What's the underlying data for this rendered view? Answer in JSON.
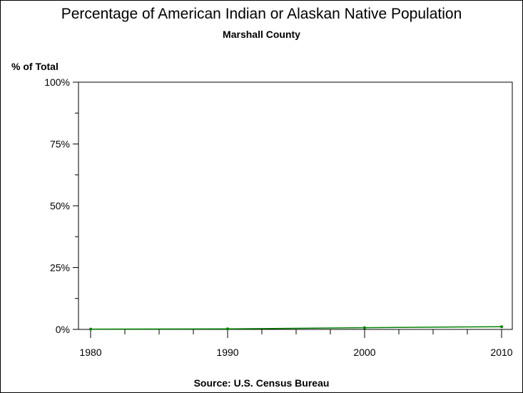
{
  "chart_data": {
    "type": "line",
    "title": "Percentage of American Indian or Alaskan Native Population",
    "subtitle": "Marshall County",
    "ylabel": "% of Total",
    "xlabel": "",
    "source": "Source: U.S. Census Bureau",
    "x": [
      1980,
      1990,
      2000,
      2010
    ],
    "series": [
      {
        "values": [
          0.1,
          0.2,
          0.7,
          1.1
        ]
      }
    ],
    "xlim": [
      1979,
      2011
    ],
    "ylim": [
      0,
      100
    ],
    "xticks": [
      "1980",
      "1990",
      "2000",
      "2010"
    ],
    "yticks": [
      "0%",
      "25%",
      "50%",
      "75%",
      "100%"
    ],
    "grid": false,
    "color": "#008000"
  }
}
